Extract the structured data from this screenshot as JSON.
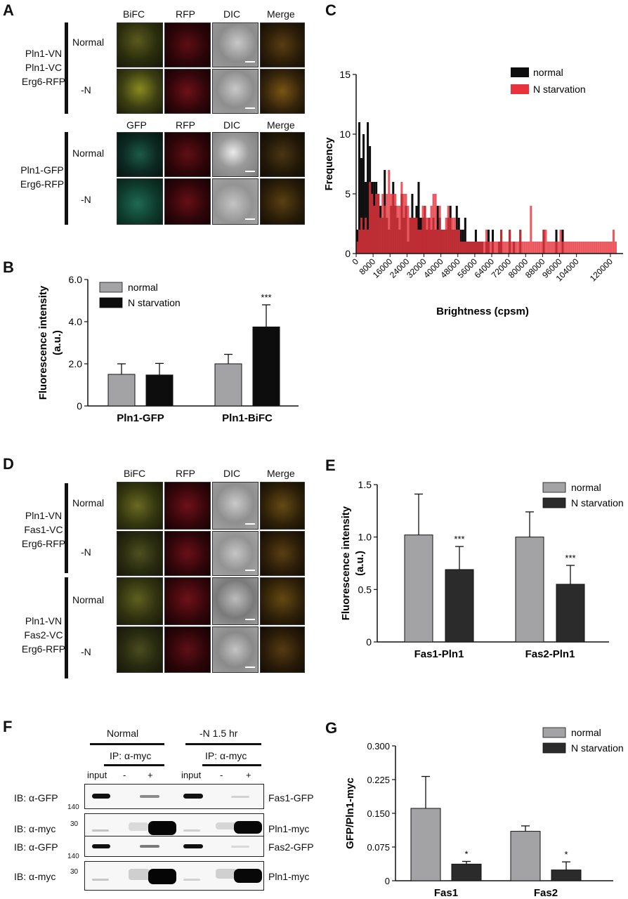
{
  "panels": {
    "A": "A",
    "B": "B",
    "C": "C",
    "D": "D",
    "E": "E",
    "F": "F",
    "G": "G"
  },
  "panelA": {
    "headers1": [
      "BiFC",
      "RFP",
      "DIC",
      "Merge"
    ],
    "headers2": [
      "GFP",
      "RFP",
      "DIC",
      "Merge"
    ],
    "group1_lines": [
      "Pln1-VN",
      "Pln1-VC",
      "Erg6-RFP"
    ],
    "group2_lines": [
      "Pln1-GFP",
      "Erg6-RFP"
    ],
    "row_normal": "Normal",
    "row_minusN": "-N"
  },
  "panelD": {
    "headers": [
      "BiFC",
      "RFP",
      "DIC",
      "Merge"
    ],
    "group1_lines": [
      "Pln1-VN",
      "Fas1-VC",
      "Erg6-RFP"
    ],
    "group2_lines": [
      "Pln1-VN",
      "Fas2-VC",
      "Erg6-RFP"
    ],
    "row_normal": "Normal",
    "row_minusN": "-N"
  },
  "panelF": {
    "cond_normal": "Normal",
    "cond_minusN": "-N 1.5 hr",
    "ip_label": "IP: α-myc",
    "lane_labels": [
      "input",
      "-",
      "+",
      "input",
      "-",
      "+"
    ],
    "rows": [
      {
        "ib": "IB: α-GFP",
        "marker": "140",
        "protein": "Fas1-GFP"
      },
      {
        "ib": "IB: α-myc",
        "marker": "30",
        "protein": "Pln1-myc"
      },
      {
        "ib": "IB: α-GFP",
        "marker": "140",
        "protein": "Fas2-GFP"
      },
      {
        "ib": "IB: α-myc",
        "marker": "30",
        "protein": "Pln1-myc"
      }
    ]
  },
  "colors": {
    "gray": "#a3a3a5",
    "black": "#0d0d0d",
    "dark": "#2b2b2b",
    "red": "#e8333c"
  },
  "chart_data": [
    {
      "id": "B",
      "type": "bar",
      "categories": [
        "Pln1-GFP",
        "Pln1-BiFC"
      ],
      "series": [
        {
          "name": "normal",
          "values": [
            1.5,
            2.0
          ],
          "errors": [
            0.5,
            0.45
          ],
          "color": "#a3a3a5"
        },
        {
          "name": "N starvation",
          "values": [
            1.47,
            3.75
          ],
          "errors": [
            0.55,
            1.05
          ],
          "color": "#0d0d0d"
        }
      ],
      "significance": [
        "",
        "***"
      ],
      "ylabel": "Fluorescence intensity\n(a.u.)",
      "ylabel_lines": [
        "Fluorescence intensity",
        "(a.u.)"
      ],
      "ylim": [
        0,
        6
      ],
      "yticks": [
        "0",
        "2.0",
        "4.0",
        "6.0"
      ],
      "legend": "top-left"
    },
    {
      "id": "C",
      "type": "bar",
      "title": "",
      "xlabel": "Brightness (cpsm)",
      "ylabel": "Frequency",
      "ylim": [
        0,
        15
      ],
      "yticks": [
        "0",
        "5",
        "10",
        "15"
      ],
      "xticks": [
        "0",
        "8000",
        "16000",
        "24000",
        "32000",
        "40000",
        "48000",
        "56000",
        "64000",
        "72000",
        "80000",
        "88000",
        "96000",
        "104000",
        "120000"
      ],
      "xtick_values": [
        0,
        8000,
        16000,
        24000,
        32000,
        40000,
        48000,
        56000,
        64000,
        72000,
        80000,
        88000,
        96000,
        104000,
        120000
      ],
      "bin_width": 1000,
      "series": [
        {
          "name": "normal",
          "color": "#0d0d0d",
          "x": [
            500,
            1500,
            2500,
            3500,
            4500,
            5500,
            6500,
            7500,
            8500,
            9500,
            10500,
            11500,
            12500,
            13500,
            14500,
            15500,
            16500,
            17500,
            18500,
            19500,
            20500,
            21500,
            22500,
            23500,
            24500,
            25500,
            26500,
            27500,
            28500,
            29500,
            30500,
            31500,
            32500,
            33500,
            34500,
            35500,
            36500,
            37500,
            38500,
            39500,
            40500,
            41500,
            42500,
            43500,
            44500,
            45500,
            46500,
            47500,
            48500,
            49500,
            50500,
            51500,
            52500,
            53500,
            54500,
            55500,
            56500,
            57500,
            58500,
            59500,
            61500,
            62500,
            64500,
            67500,
            68500,
            72500,
            74500,
            77500,
            88500,
            94500,
            97500
          ],
          "values": [
            2,
            11,
            8,
            10,
            6,
            11,
            9,
            6,
            6,
            6,
            5,
            4,
            3,
            7,
            3,
            2,
            4,
            6,
            4,
            3,
            2,
            5,
            3,
            4,
            1,
            3,
            5,
            3,
            4,
            6,
            3,
            3,
            4,
            2,
            3,
            2,
            3,
            2,
            4,
            3,
            2,
            2,
            2,
            3,
            4,
            2,
            2,
            4,
            3,
            2,
            2,
            3,
            1,
            1,
            1,
            1,
            2,
            1,
            1,
            1,
            1,
            2,
            2,
            1,
            2,
            2,
            1,
            2,
            2,
            2,
            2
          ]
        },
        {
          "name": "N starvation",
          "color": "#e8333c",
          "x": [
            500,
            1500,
            2500,
            3500,
            4500,
            5500,
            6500,
            7500,
            8500,
            9500,
            10500,
            11500,
            12500,
            13500,
            14500,
            15500,
            16500,
            17500,
            18500,
            19500,
            20500,
            21500,
            22500,
            23500,
            24500,
            25500,
            26500,
            27500,
            28500,
            29500,
            30500,
            31500,
            32500,
            33500,
            34500,
            35500,
            36500,
            37500,
            38500,
            39500,
            40500,
            41500,
            42500,
            43500,
            44500,
            45500,
            46500,
            47500,
            48500,
            49500,
            50500,
            51500,
            52500,
            53500,
            54500,
            55500,
            56500,
            57500,
            58500,
            59500,
            60500,
            61500,
            62500,
            63500,
            64500,
            65500,
            66500,
            67500,
            68500,
            69500,
            70500,
            71500,
            72500,
            73500,
            74500,
            75500,
            76500,
            77500,
            78500,
            79500,
            80500,
            81500,
            82500,
            83500,
            84500,
            85500,
            86500,
            87500,
            88500,
            89500,
            90500,
            91500,
            92500,
            93500,
            94500,
            95500,
            96500,
            97500,
            98500,
            99500,
            100500,
            101500,
            102500,
            103500,
            104500,
            105500,
            106500,
            107500,
            108500,
            109500,
            110500,
            111500,
            112500,
            113500,
            114500,
            115500,
            116500,
            117500,
            118500,
            119500,
            120500,
            121500,
            122500
          ],
          "values": [
            1,
            2,
            3,
            2,
            3,
            2,
            6,
            5,
            4,
            5,
            5,
            3,
            5,
            4,
            5,
            7,
            5,
            5,
            5,
            4,
            4,
            6,
            5,
            5,
            4,
            3,
            3,
            3,
            3,
            2,
            2,
            4,
            4,
            3,
            3,
            4,
            5,
            5,
            2,
            4,
            2,
            2,
            3,
            4,
            3,
            3,
            3,
            2,
            2,
            1,
            1,
            1,
            1,
            1,
            1,
            1,
            1,
            1,
            1,
            1,
            1,
            2,
            1,
            1,
            1,
            1,
            1,
            1,
            2,
            1,
            1,
            1,
            2,
            1,
            1,
            1,
            1,
            2,
            1,
            1,
            1,
            1,
            4,
            1,
            1,
            1,
            1,
            1,
            2,
            2,
            1,
            1,
            1,
            1,
            1,
            1,
            2,
            1,
            1,
            1,
            1,
            1,
            1,
            1,
            1,
            1,
            1,
            1,
            1,
            1,
            1,
            1,
            1,
            1,
            1,
            1,
            1,
            1,
            1,
            1,
            1,
            2,
            1
          ]
        }
      ],
      "legend": "top-right"
    },
    {
      "id": "E",
      "type": "bar",
      "categories": [
        "Fas1-Pln1",
        "Fas2-Pln1"
      ],
      "series": [
        {
          "name": "normal",
          "values": [
            1.02,
            1.0
          ],
          "errors": [
            0.39,
            0.24
          ],
          "color": "#a3a3a5"
        },
        {
          "name": "N starvation",
          "values": [
            0.69,
            0.55
          ],
          "errors": [
            0.22,
            0.18
          ],
          "color": "#2b2b2b"
        }
      ],
      "significance": [
        "***",
        "***"
      ],
      "ylabel": "Fluorescence intensity\n(a.u.)",
      "ylabel_lines": [
        "Fluorescence intensity",
        "(a.u.)"
      ],
      "ylim": [
        0,
        1.5
      ],
      "yticks": [
        "0",
        "0.5",
        "1.0",
        "1.5"
      ],
      "legend": "top-right"
    },
    {
      "id": "G",
      "type": "bar",
      "categories": [
        "Fas1",
        "Fas2"
      ],
      "series": [
        {
          "name": "normal",
          "values": [
            0.161,
            0.11
          ],
          "errors": [
            0.071,
            0.012
          ],
          "color": "#a3a3a5"
        },
        {
          "name": "N starvation",
          "values": [
            0.037,
            0.024
          ],
          "errors": [
            0.006,
            0.018
          ],
          "color": "#2b2b2b"
        }
      ],
      "significance": [
        "*",
        "*"
      ],
      "ylabel": "GFP/Pln1-myc",
      "ylim": [
        0,
        0.3
      ],
      "yticks": [
        "0",
        "0.075",
        "0.150",
        "0.225",
        "0.300"
      ],
      "legend": "top-right"
    }
  ]
}
